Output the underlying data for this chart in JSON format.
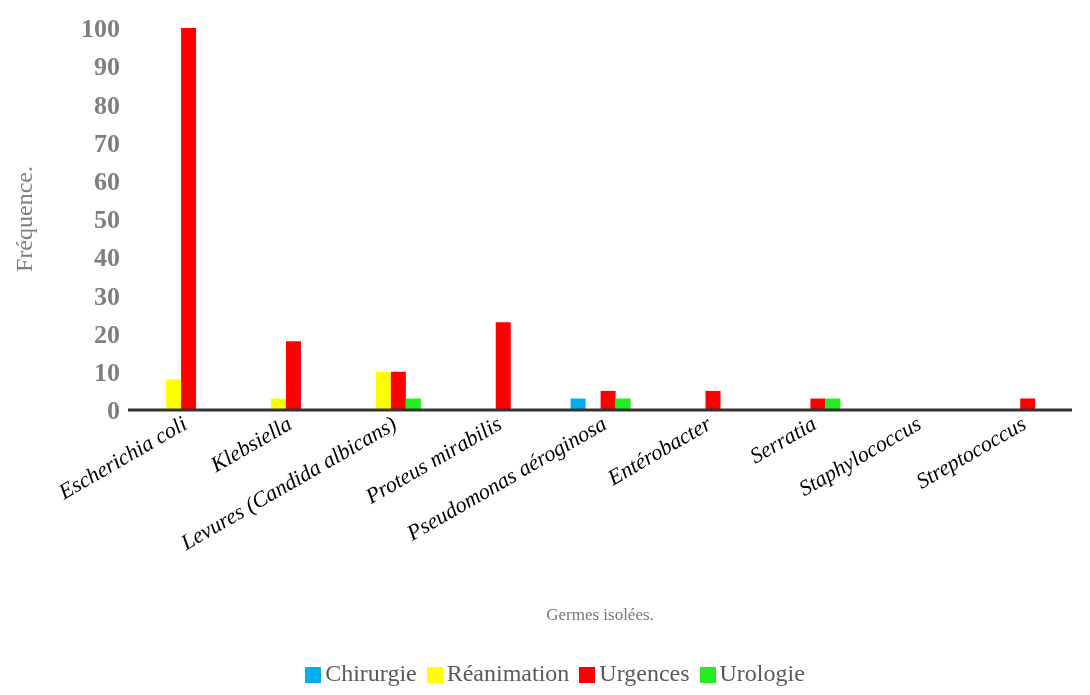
{
  "chart_data": {
    "type": "bar",
    "xlabel": "Germes isolées.",
    "ylabel": "Fréquence.",
    "categories": [
      "Escherichia coli",
      "Klebsiella",
      "Levures (Candida albicans)",
      "Proteus mirabilis",
      "Pseudomonas aéroginosa",
      "Entérobacter",
      "Serratia",
      "Staphylococcus",
      "Streptococcus"
    ],
    "series": [
      {
        "name": "Chirurgie",
        "color": "#00b0f0",
        "values": [
          0,
          0,
          0,
          0,
          3,
          0,
          0,
          0,
          0
        ]
      },
      {
        "name": "Réanimation",
        "color": "#ffff00",
        "values": [
          8,
          3,
          10,
          0,
          0,
          0,
          0,
          0,
          0
        ]
      },
      {
        "name": "Urgences",
        "color": "#ff0000",
        "values": [
          100,
          18,
          10,
          23,
          5,
          5,
          3,
          0,
          3
        ]
      },
      {
        "name": "Urologie",
        "color": "#22ee22",
        "values": [
          0,
          0,
          3,
          0,
          3,
          0,
          3,
          0,
          0
        ]
      }
    ],
    "ylim": [
      0,
      100
    ],
    "yticks": [
      0,
      10,
      20,
      30,
      40,
      50,
      60,
      70,
      80,
      90,
      100
    ],
    "grid": false,
    "legend": "bottom"
  }
}
